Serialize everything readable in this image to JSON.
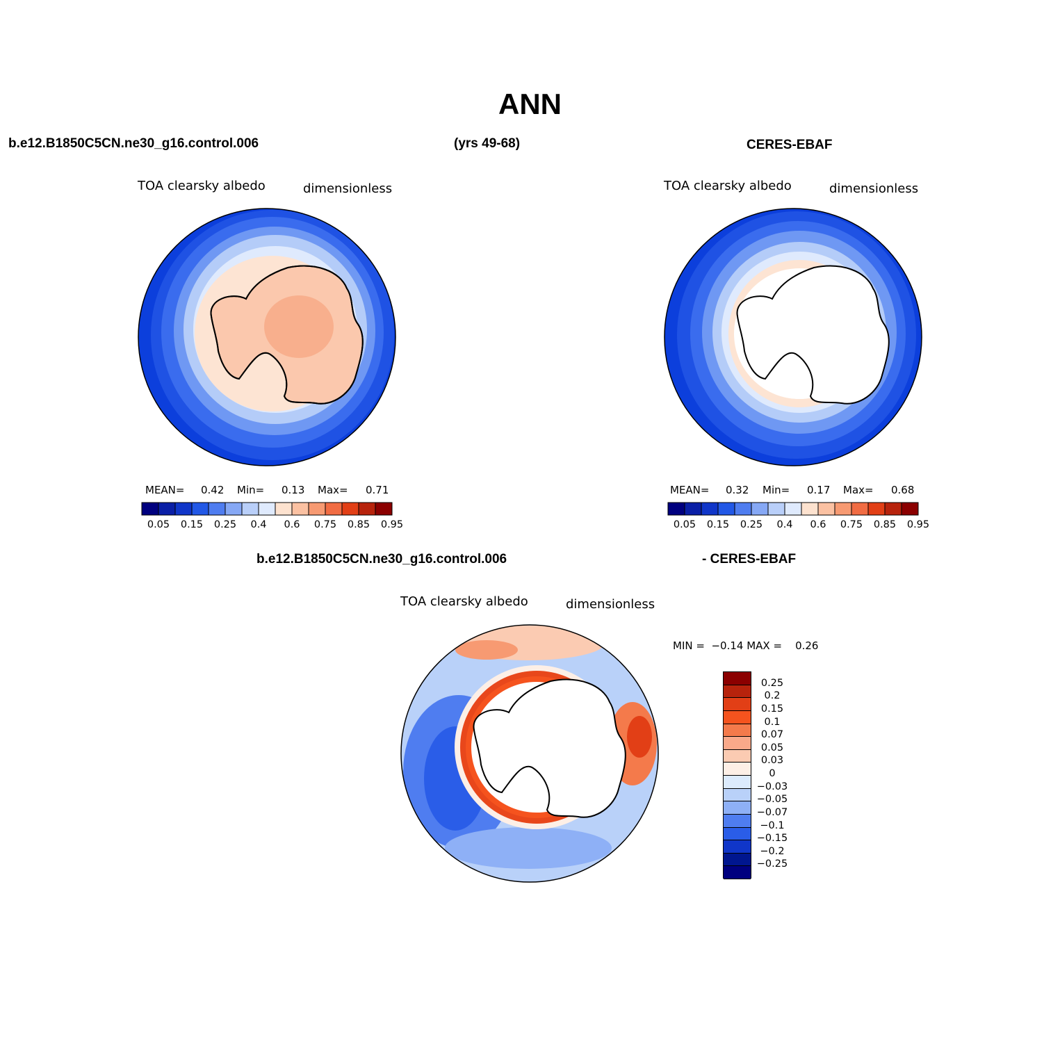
{
  "title": "ANN",
  "header": {
    "case_name": "b.e12.B1850C5CN.ne30_g16.control.006",
    "years": "(yrs 49-68)",
    "obs_name": "CERES-EBAF"
  },
  "diff_header": {
    "case_name": "b.e12.B1850C5CN.ne30_g16.control.006",
    "obs_name": "- CERES-EBAF"
  },
  "panels": [
    {
      "variable": "TOA clearsky albedo",
      "units": "dimensionless",
      "mean_label": "MEAN=",
      "mean": "0.42",
      "min_label": "Min=",
      "min": "0.13",
      "max_label": "Max=",
      "max": "0.71"
    },
    {
      "variable": "TOA clearsky albedo",
      "units": "dimensionless",
      "mean_label": "MEAN=",
      "mean": "0.32",
      "min_label": "Min=",
      "min": "0.17",
      "max_label": "Max=",
      "max": "0.68"
    }
  ],
  "diff_panel": {
    "variable": "TOA clearsky albedo",
    "units": "dimensionless",
    "minmax_text": "MIN =  −0.14 MAX =    0.26"
  },
  "colorbar_h": {
    "ticks": [
      "0.05",
      "0.15",
      "0.25",
      "0.4",
      "0.6",
      "0.75",
      "0.85",
      "0.95"
    ],
    "colors": [
      "#00007f",
      "#0a1fa6",
      "#1036c9",
      "#2258e6",
      "#4f7df0",
      "#86a8f5",
      "#b9cff9",
      "#dfeafd",
      "#fde2cf",
      "#fbc1a2",
      "#f79a72",
      "#f16c43",
      "#e23f16",
      "#b7230c",
      "#8b0000"
    ]
  },
  "colorbar_v": {
    "ticks": [
      "0.25",
      "0.2",
      "0.15",
      "0.1",
      "0.07",
      "0.05",
      "0.03",
      "0",
      "−0.03",
      "−0.05",
      "−0.07",
      "−0.1",
      "−0.15",
      "−0.2",
      "−0.25"
    ],
    "colors": [
      "#8b0000",
      "#b7230c",
      "#e23f16",
      "#f5531e",
      "#f47a4b",
      "#f9a98a",
      "#fbcbb2",
      "#fdefe6",
      "#dcebfd",
      "#b9d1f9",
      "#8eb0f6",
      "#4f7df0",
      "#2a5de8",
      "#1036c9",
      "#00168f",
      "#00007f"
    ]
  },
  "colors": {
    "ocean_deep": "#0c3fdc",
    "ocean_mid": "#2d62ea",
    "ocean_light": "#6f98f3",
    "sea_ice_light": "#b4ccf8",
    "pale_blue": "#dfeafd",
    "land_model": "#fbc8ad",
    "land_model_high": "#f7a985",
    "diff_red": "#e8471b"
  }
}
